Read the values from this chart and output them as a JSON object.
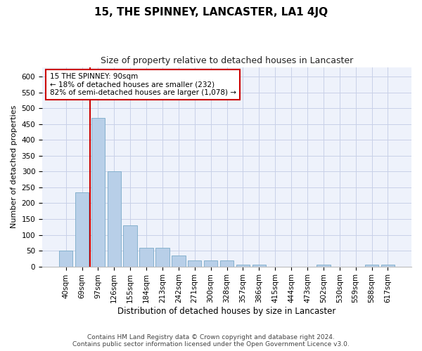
{
  "title": "15, THE SPINNEY, LANCASTER, LA1 4JQ",
  "subtitle": "Size of property relative to detached houses in Lancaster",
  "xlabel": "Distribution of detached houses by size in Lancaster",
  "ylabel": "Number of detached properties",
  "categories": [
    "40sqm",
    "69sqm",
    "97sqm",
    "126sqm",
    "155sqm",
    "184sqm",
    "213sqm",
    "242sqm",
    "271sqm",
    "300sqm",
    "328sqm",
    "357sqm",
    "386sqm",
    "415sqm",
    "444sqm",
    "473sqm",
    "502sqm",
    "530sqm",
    "559sqm",
    "588sqm",
    "617sqm"
  ],
  "values": [
    50,
    235,
    470,
    300,
    130,
    60,
    60,
    35,
    20,
    20,
    20,
    5,
    5,
    0,
    0,
    0,
    5,
    0,
    0,
    5,
    5
  ],
  "bar_color": "#b8cfe8",
  "bar_edge_color": "#7aaac8",
  "vline_x": 1.5,
  "vline_color": "#cc0000",
  "annotation_text": "15 THE SPINNEY: 90sqm\n← 18% of detached houses are smaller (232)\n82% of semi-detached houses are larger (1,078) →",
  "annotation_box_color": "#ffffff",
  "annotation_box_edge_color": "#cc0000",
  "ylim": [
    0,
    630
  ],
  "yticks": [
    0,
    50,
    100,
    150,
    200,
    250,
    300,
    350,
    400,
    450,
    500,
    550,
    600
  ],
  "footer_line1": "Contains HM Land Registry data © Crown copyright and database right 2024.",
  "footer_line2": "Contains public sector information licensed under the Open Government Licence v3.0.",
  "background_color": "#ffffff",
  "plot_bg_color": "#eef2fb",
  "grid_color": "#c8d0e8",
  "title_fontsize": 11,
  "subtitle_fontsize": 9,
  "xlabel_fontsize": 8.5,
  "ylabel_fontsize": 8,
  "tick_fontsize": 7.5,
  "annotation_fontsize": 7.5,
  "footer_fontsize": 6.5
}
